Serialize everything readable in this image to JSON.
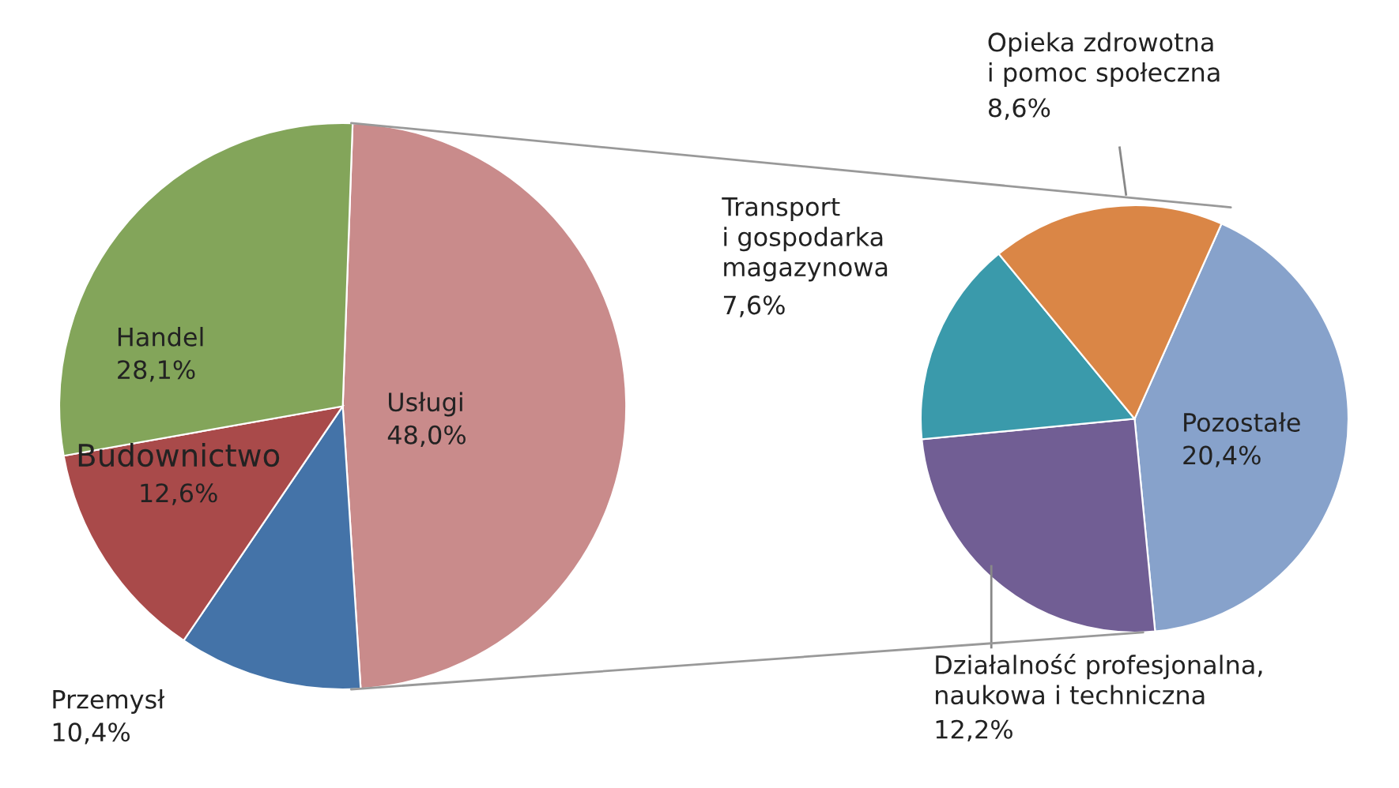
{
  "chart_data": [
    {
      "type": "pie",
      "categories": [
        "Usługi",
        "Przemysł",
        "Budownictwo",
        "Handel"
      ],
      "values": [
        48.0,
        10.4,
        12.6,
        28.1
      ],
      "value_labels": [
        "48,0%",
        "10,4%",
        "12,6%",
        "28,1%"
      ],
      "colors": [
        "#c98b8b",
        "#4473a8",
        "#a94a4a",
        "#83a55a"
      ],
      "legend": false
    },
    {
      "type": "pie",
      "categories": [
        "Pozostałe",
        "Działalność profesjonalna,\nnaukowa i techniczna",
        "Transport\ni gospodarka\nmagazynowa",
        "Opieka zdrowotna\ni pomoc społeczna"
      ],
      "values": [
        20.4,
        12.2,
        7.6,
        8.6
      ],
      "value_labels": [
        "20,4%",
        "12,2%",
        "7,6%",
        "8,6%"
      ],
      "colors": [
        "#87a2cb",
        "#715e94",
        "#3a9aab",
        "#da8646"
      ],
      "legend": false
    }
  ]
}
